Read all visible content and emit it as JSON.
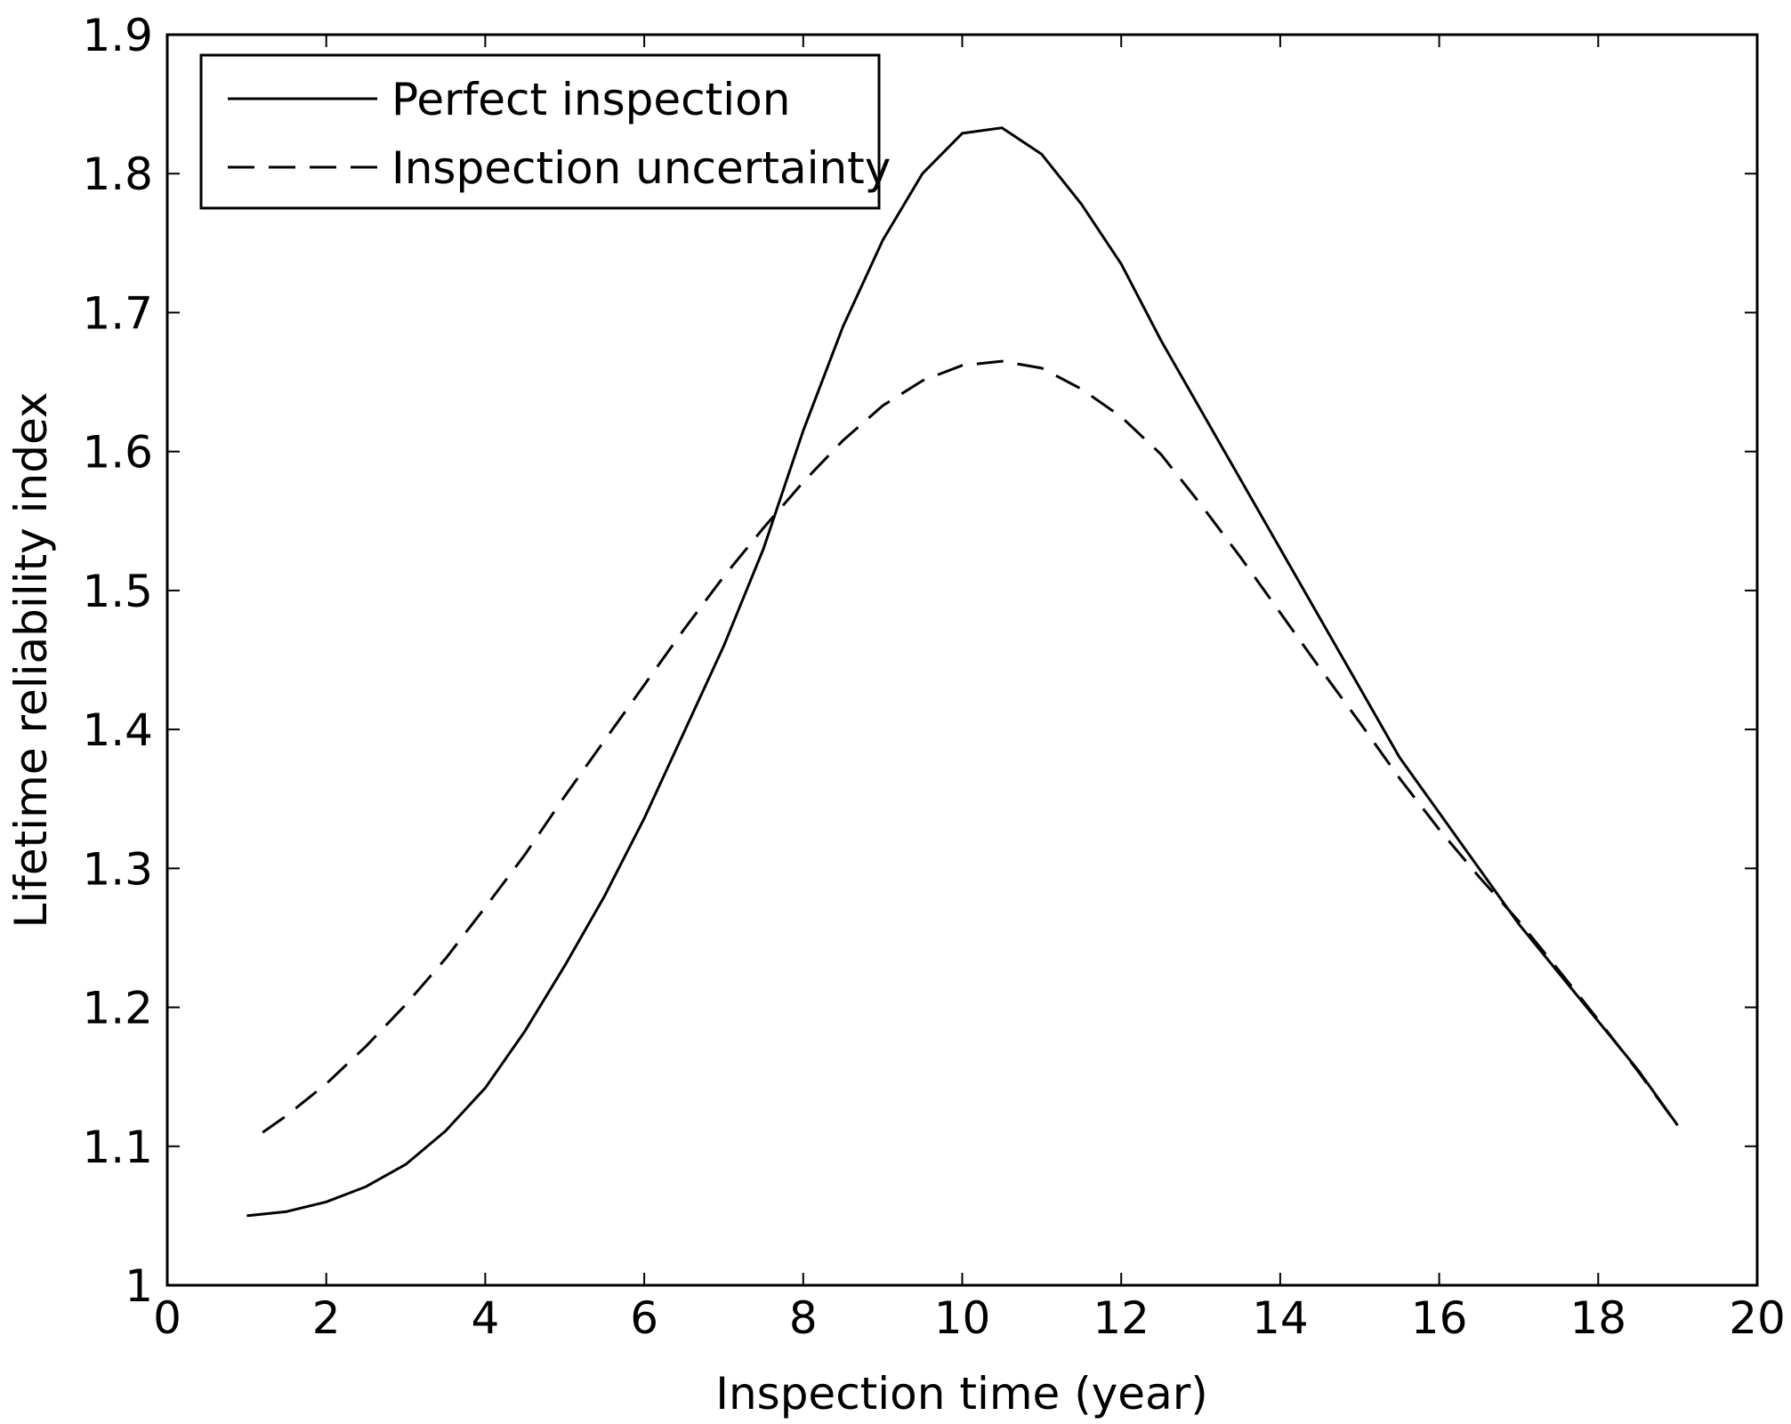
{
  "chart_data": {
    "type": "line",
    "title": "",
    "xlabel": "Inspection time (year)",
    "ylabel": "Lifetime reliability index",
    "xlim": [
      0,
      20
    ],
    "ylim": [
      1,
      1.9
    ],
    "xticks": [
      0,
      2,
      4,
      6,
      8,
      10,
      12,
      14,
      16,
      18,
      20
    ],
    "yticks": [
      1,
      1.1,
      1.2,
      1.3,
      1.4,
      1.5,
      1.6,
      1.7,
      1.8,
      1.9
    ],
    "grid": false,
    "legend_position": "top-left",
    "series": [
      {
        "name": "Perfect inspection",
        "style": "solid",
        "color": "#000000",
        "x": [
          1.0,
          1.5,
          2.0,
          2.5,
          3.0,
          3.5,
          4.0,
          4.5,
          5.0,
          5.5,
          6.0,
          6.5,
          7.0,
          7.5,
          8.0,
          8.5,
          9.0,
          9.5,
          10.0,
          10.5,
          11.0,
          11.5,
          12.0,
          12.5,
          13.0,
          13.5,
          14.0,
          14.5,
          15.0,
          15.5,
          16.0,
          16.5,
          17.0,
          17.5,
          18.0,
          18.5,
          19.0
        ],
        "y": [
          1.05,
          1.053,
          1.06,
          1.071,
          1.087,
          1.111,
          1.142,
          1.183,
          1.23,
          1.28,
          1.336,
          1.398,
          1.46,
          1.53,
          1.615,
          1.69,
          1.752,
          1.8,
          1.829,
          1.833,
          1.814,
          1.778,
          1.735,
          1.68,
          1.63,
          1.58,
          1.53,
          1.48,
          1.43,
          1.38,
          1.34,
          1.3,
          1.26,
          1.225,
          1.19,
          1.155,
          1.115
        ]
      },
      {
        "name": "Inspection uncertainty",
        "style": "dashed",
        "color": "#000000",
        "x": [
          1.2,
          1.5,
          2.0,
          2.5,
          3.0,
          3.5,
          4.0,
          4.5,
          5.0,
          5.5,
          6.0,
          6.5,
          7.0,
          7.5,
          8.0,
          8.5,
          9.0,
          9.5,
          10.0,
          10.5,
          11.0,
          11.5,
          12.0,
          12.5,
          13.0,
          13.5,
          14.0,
          14.5,
          15.0,
          15.5,
          16.0,
          16.5,
          17.0,
          17.5,
          18.0,
          18.5,
          19.0
        ],
        "y": [
          1.11,
          1.122,
          1.145,
          1.172,
          1.202,
          1.235,
          1.272,
          1.31,
          1.352,
          1.392,
          1.432,
          1.472,
          1.51,
          1.545,
          1.578,
          1.608,
          1.633,
          1.651,
          1.662,
          1.665,
          1.66,
          1.645,
          1.625,
          1.598,
          1.562,
          1.524,
          1.484,
          1.444,
          1.405,
          1.365,
          1.328,
          1.294,
          1.262,
          1.227,
          1.191,
          1.154,
          1.115
        ]
      }
    ]
  }
}
